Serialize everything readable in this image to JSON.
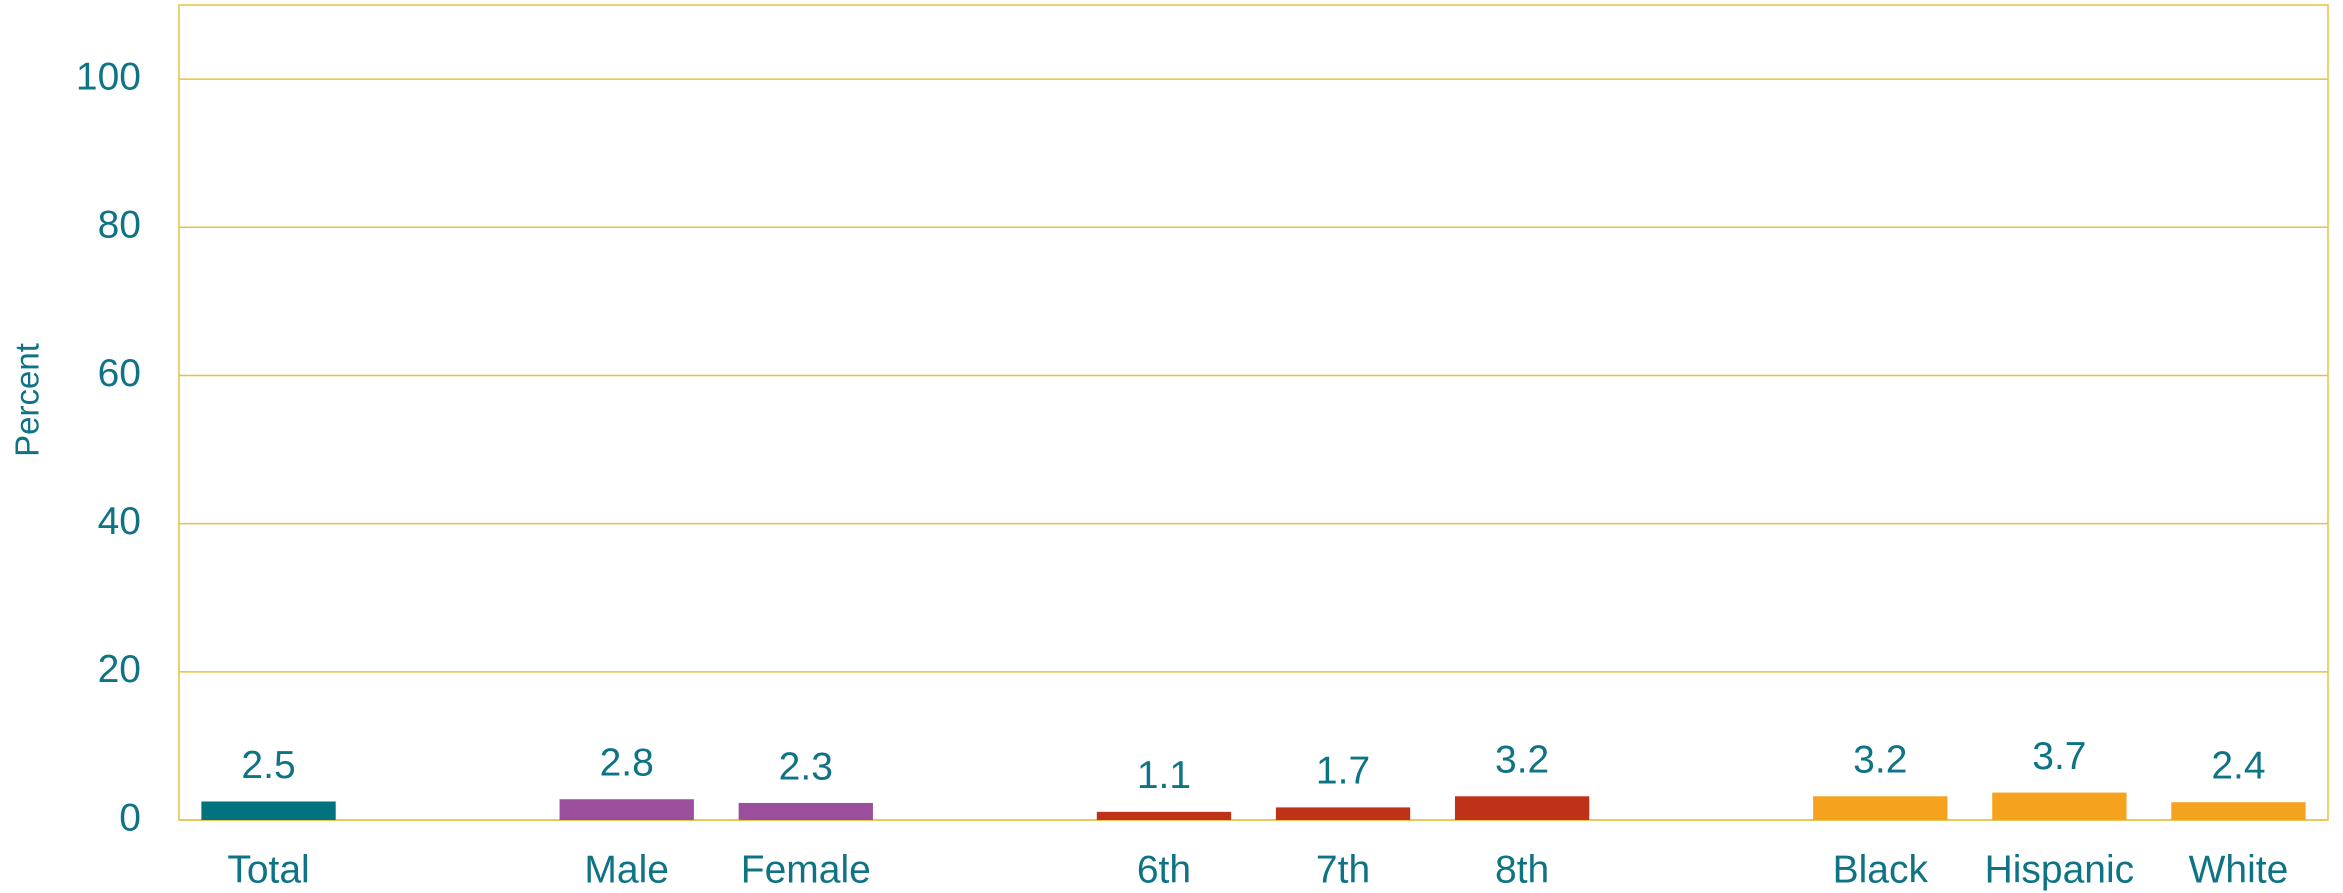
{
  "chart_data": {
    "type": "bar",
    "y_label": "Percent",
    "categories": [
      "Total",
      null,
      "Male",
      "Female",
      null,
      "6th",
      "7th",
      "8th",
      null,
      "Black",
      "Hispanic",
      "White"
    ],
    "values": [
      2.5,
      null,
      2.8,
      2.3,
      null,
      1.1,
      1.7,
      3.2,
      null,
      3.2,
      3.7,
      2.4
    ],
    "colors": [
      "#00737f",
      null,
      "#9a4e9c",
      "#9a4e9c",
      null,
      "#c0311a",
      "#c0311a",
      "#c0311a",
      null,
      "#f5a21e",
      "#f5a21e",
      "#f5a21e"
    ],
    "ylim": [
      0,
      110
    ],
    "yticks": [
      0,
      20,
      40,
      60,
      80,
      100
    ],
    "grid": true
  }
}
